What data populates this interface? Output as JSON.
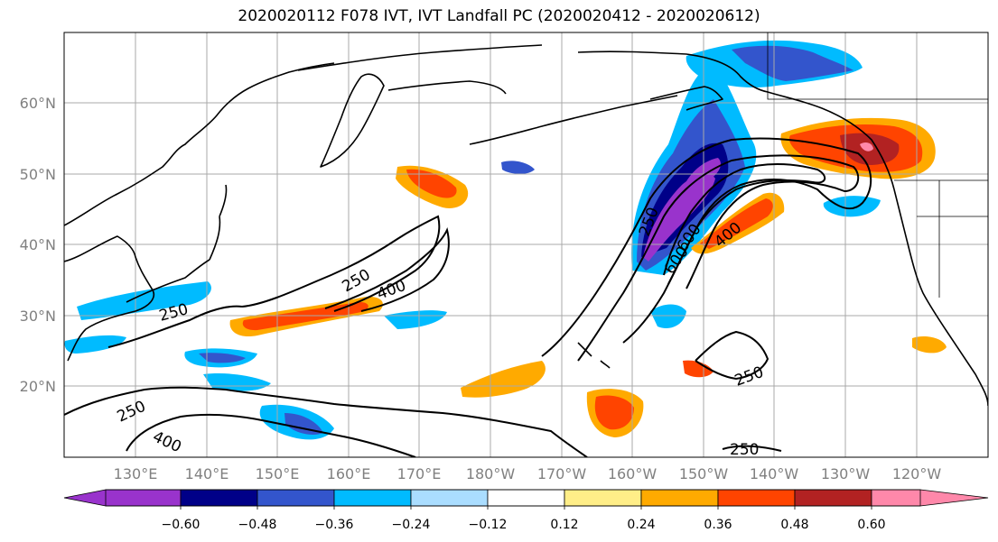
{
  "title": "2020020112 F078 IVT, IVT Landfall PC (2020020412 - 2020020612)",
  "lat_labels": [
    "60°N",
    "50°N",
    "40°N",
    "30°N",
    "20°N"
  ],
  "lon_labels": [
    "130°E",
    "140°E",
    "150°E",
    "160°E",
    "170°E",
    "180°W",
    "170°W",
    "160°W",
    "150°W",
    "140°W",
    "130°W",
    "120°W"
  ],
  "colorbar": {
    "colors": [
      "#9933cc",
      "#000088",
      "#3355cc",
      "#00bbff",
      "#aaddff",
      "#ffffff",
      "#ffee88",
      "#ffaa00",
      "#ff4400",
      "#b22222",
      "#ff88aa"
    ],
    "ticks": [
      "−0.60",
      "−0.48",
      "−0.36",
      "−0.24",
      "−0.12",
      "0.12",
      "0.24",
      "0.36",
      "0.48",
      "0.60"
    ]
  },
  "contour_labels": [
    "250",
    "400",
    "250",
    "400",
    "250",
    "600",
    "600",
    "400",
    "250",
    "250",
    "250",
    "400"
  ]
}
